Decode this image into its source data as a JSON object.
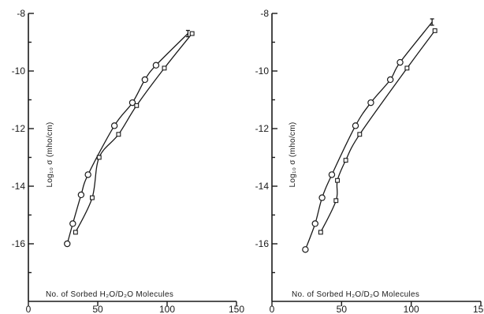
{
  "chart_data": [
    {
      "type": "scatter",
      "xlabel": "No. of Sorbed H₂O/D₂O Molecules",
      "ylabel": "Log₁₀ σ  (mho/cm)",
      "xlim": [
        0,
        150
      ],
      "ylim": [
        -18,
        -8
      ],
      "x_ticks": [
        0,
        50,
        100,
        150
      ],
      "y_ticks": [
        -8,
        -10,
        -12,
        -14,
        -16
      ],
      "x_tick_labels": [
        "0",
        "50",
        "100",
        "150"
      ],
      "y_tick_labels": [
        "-8",
        "-10",
        "-12",
        "-14",
        "-16"
      ],
      "grid": false,
      "series": [
        {
          "marker": "circle",
          "x": [
            28,
            32,
            38,
            43,
            62,
            75,
            84,
            92
          ],
          "y": [
            -16.0,
            -15.3,
            -14.3,
            -13.6,
            -11.9,
            -11.1,
            -10.3,
            -9.8
          ]
        },
        {
          "marker": "square",
          "x": [
            34,
            46,
            51,
            65,
            78,
            98,
            118
          ],
          "y": [
            -15.6,
            -14.4,
            -13.0,
            -12.2,
            -11.2,
            -9.9,
            -8.7
          ]
        }
      ],
      "error_bar": {
        "x": 115,
        "y": -8.7
      }
    },
    {
      "type": "scatter",
      "xlabel": "No. of Sorbed H₂O/D₂O Molecules",
      "ylabel": "Log₁₀ σ  (mho/cm)",
      "xlim": [
        0,
        150
      ],
      "ylim": [
        -18,
        -8
      ],
      "x_ticks": [
        0,
        50,
        100,
        150
      ],
      "y_ticks": [
        -8,
        -10,
        -12,
        -14,
        -16
      ],
      "x_tick_labels": [
        "0",
        "50",
        "100",
        "150"
      ],
      "y_tick_labels": [
        "-8",
        "-10",
        "-12",
        "-14",
        "-16"
      ],
      "grid": false,
      "series": [
        {
          "marker": "circle",
          "x": [
            24,
            31,
            36,
            43,
            60,
            71,
            85,
            92
          ],
          "y": [
            -16.2,
            -15.3,
            -14.4,
            -13.6,
            -11.9,
            -11.1,
            -10.3,
            -9.7
          ]
        },
        {
          "marker": "square",
          "x": [
            35,
            46,
            47,
            53,
            63,
            97,
            117
          ],
          "y": [
            -15.6,
            -14.5,
            -13.8,
            -13.1,
            -12.2,
            -9.9,
            -8.6
          ]
        }
      ],
      "error_bar": {
        "x": 115,
        "y": -8.3
      }
    }
  ]
}
